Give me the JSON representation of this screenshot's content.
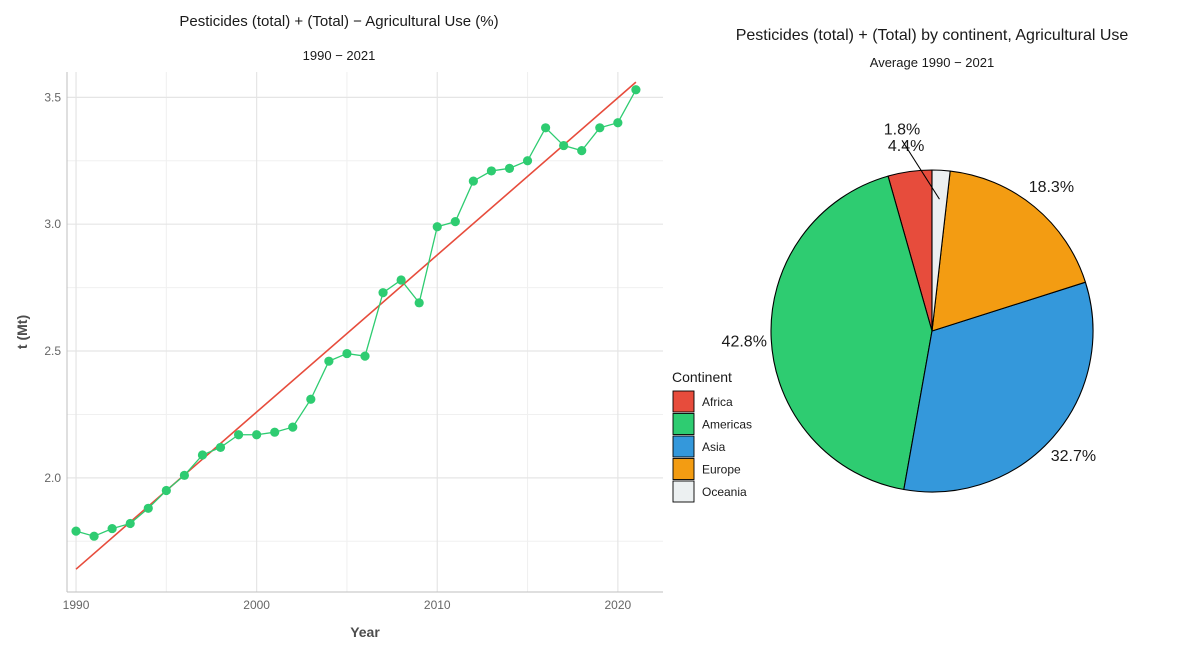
{
  "chart_data": [
    {
      "type": "line",
      "title": "Pesticides (total) + (Total) − Agricultural Use (%)",
      "subtitle": "1990 − 2021",
      "xlabel": "Year",
      "ylabel": "t (Mt)",
      "xlim": [
        1989.5,
        2022.5
      ],
      "ylim": [
        1.55,
        3.6
      ],
      "x_ticks": [
        1990,
        2000,
        2010,
        2020
      ],
      "y_ticks": [
        2.0,
        2.5,
        3.0,
        3.5
      ],
      "y_tick_labels": [
        "2.0",
        "2.5",
        "3.0",
        "3.5"
      ],
      "grid": true,
      "colors": {
        "series": "#2ecc71",
        "trend": "#e74c3c",
        "grid": "#e5e5e5",
        "axis": "#bfbfbf"
      },
      "x": [
        1990,
        1991,
        1992,
        1993,
        1994,
        1995,
        1996,
        1997,
        1998,
        1999,
        2000,
        2001,
        2002,
        2003,
        2004,
        2005,
        2006,
        2007,
        2008,
        2009,
        2010,
        2011,
        2012,
        2013,
        2014,
        2015,
        2016,
        2017,
        2018,
        2019,
        2020,
        2021
      ],
      "y": [
        1.79,
        1.77,
        1.8,
        1.82,
        1.88,
        1.95,
        2.01,
        2.09,
        2.12,
        2.17,
        2.17,
        2.18,
        2.2,
        2.31,
        2.46,
        2.49,
        2.48,
        2.73,
        2.78,
        2.69,
        2.99,
        3.01,
        3.17,
        3.21,
        3.22,
        3.25,
        3.38,
        3.31,
        3.29,
        3.38,
        3.4,
        3.53
      ],
      "trend": {
        "x": [
          1990,
          2021
        ],
        "y": [
          1.64,
          3.56
        ]
      }
    },
    {
      "type": "pie",
      "title": "Pesticides (total) + (Total) by continent, Agricultural Use",
      "subtitle": "Average 1990 − 2021",
      "legend_title": "Continent",
      "legend_position": "left",
      "labels": [
        "Africa",
        "Americas",
        "Asia",
        "Europe",
        "Oceania"
      ],
      "values": [
        4.4,
        42.8,
        32.7,
        18.3,
        1.8
      ],
      "value_labels": [
        "4.4%",
        "42.8%",
        "32.7%",
        "18.3%",
        "1.8%"
      ],
      "colors": [
        "#e74c3c",
        "#2ecc71",
        "#3498db",
        "#f39c12",
        "#ecf0f1"
      ],
      "direction": "counterclockwise",
      "start": "top"
    }
  ]
}
